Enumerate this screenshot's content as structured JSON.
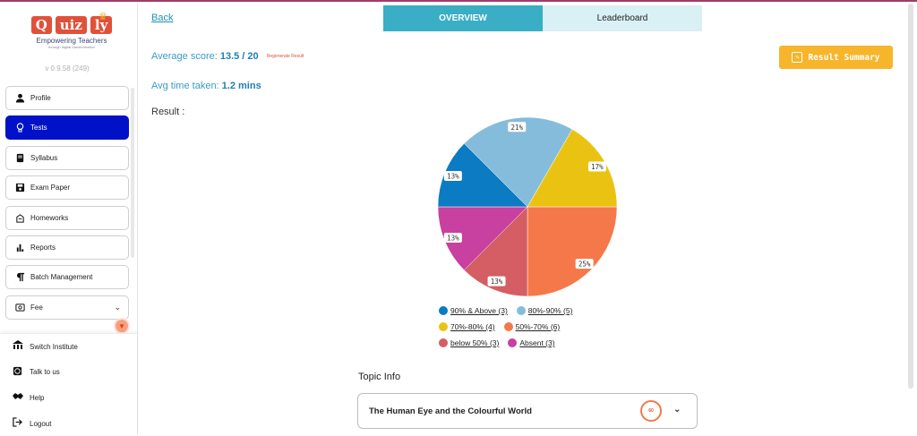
{
  "brand": {
    "letters": [
      "Q",
      "uiz",
      "ly"
    ],
    "tagline": "Empowering Teachers",
    "subtagline": "through digital transformation",
    "version": "v 0.9.58 (249)"
  },
  "sidebar": {
    "items": [
      {
        "label": "Profile",
        "icon": "user-icon"
      },
      {
        "label": "Tests",
        "icon": "lightbulb-icon"
      },
      {
        "label": "Syllabus",
        "icon": "book-icon"
      },
      {
        "label": "Exam Paper",
        "icon": "save-icon"
      },
      {
        "label": "Homeworks",
        "icon": "homework-icon"
      },
      {
        "label": "Reports",
        "icon": "bar-chart-icon"
      },
      {
        "label": "Batch Management",
        "icon": "paragraph-icon"
      },
      {
        "label": "Fee",
        "icon": "fee-icon"
      }
    ],
    "bottom_items": [
      {
        "label": "Switch Institute",
        "icon": "institute-icon"
      },
      {
        "label": "Talk to us",
        "icon": "whatsapp-icon"
      },
      {
        "label": "Help",
        "icon": "handshake-icon"
      },
      {
        "label": "Logout",
        "icon": "logout-icon"
      }
    ]
  },
  "header": {
    "back": "Back",
    "tabs": [
      {
        "label": "OVERVIEW",
        "active": true
      },
      {
        "label": "Leaderboard",
        "active": false
      }
    ],
    "result_summary": "Result Summary"
  },
  "stats": {
    "avg_score_label": "Average score: ",
    "avg_score_value": "13.5 / 20",
    "regenerate": "Regenerate Result",
    "avg_time_label": "Avg time taken: ",
    "avg_time_value": "1.2 mins",
    "result_label": "Result :"
  },
  "chart_data": {
    "type": "pie",
    "series": [
      {
        "name": "90% & Above",
        "count": 3,
        "percent": 13,
        "color": "#0b7bc3"
      },
      {
        "name": "80%-90%",
        "count": 5,
        "percent": 21,
        "color": "#86bcdb"
      },
      {
        "name": "70%-80%",
        "count": 4,
        "percent": 17,
        "color": "#eac312"
      },
      {
        "name": "50%-70%",
        "count": 6,
        "percent": 25,
        "color": "#f5784a"
      },
      {
        "name": "below 50%",
        "count": 3,
        "percent": 13,
        "color": "#d45e63"
      },
      {
        "name": "Absent",
        "count": 3,
        "percent": 13,
        "color": "#c840a0"
      }
    ]
  },
  "legend": [
    "90% & Above (3)",
    "80%-90% (5)",
    "70%-80% (4)",
    "50%-70% (6)",
    "below 50% (3)",
    "Absent (3)"
  ],
  "topic": {
    "label": "Topic Info",
    "title": "The Human Eye and the Colourful World",
    "score": "60"
  }
}
